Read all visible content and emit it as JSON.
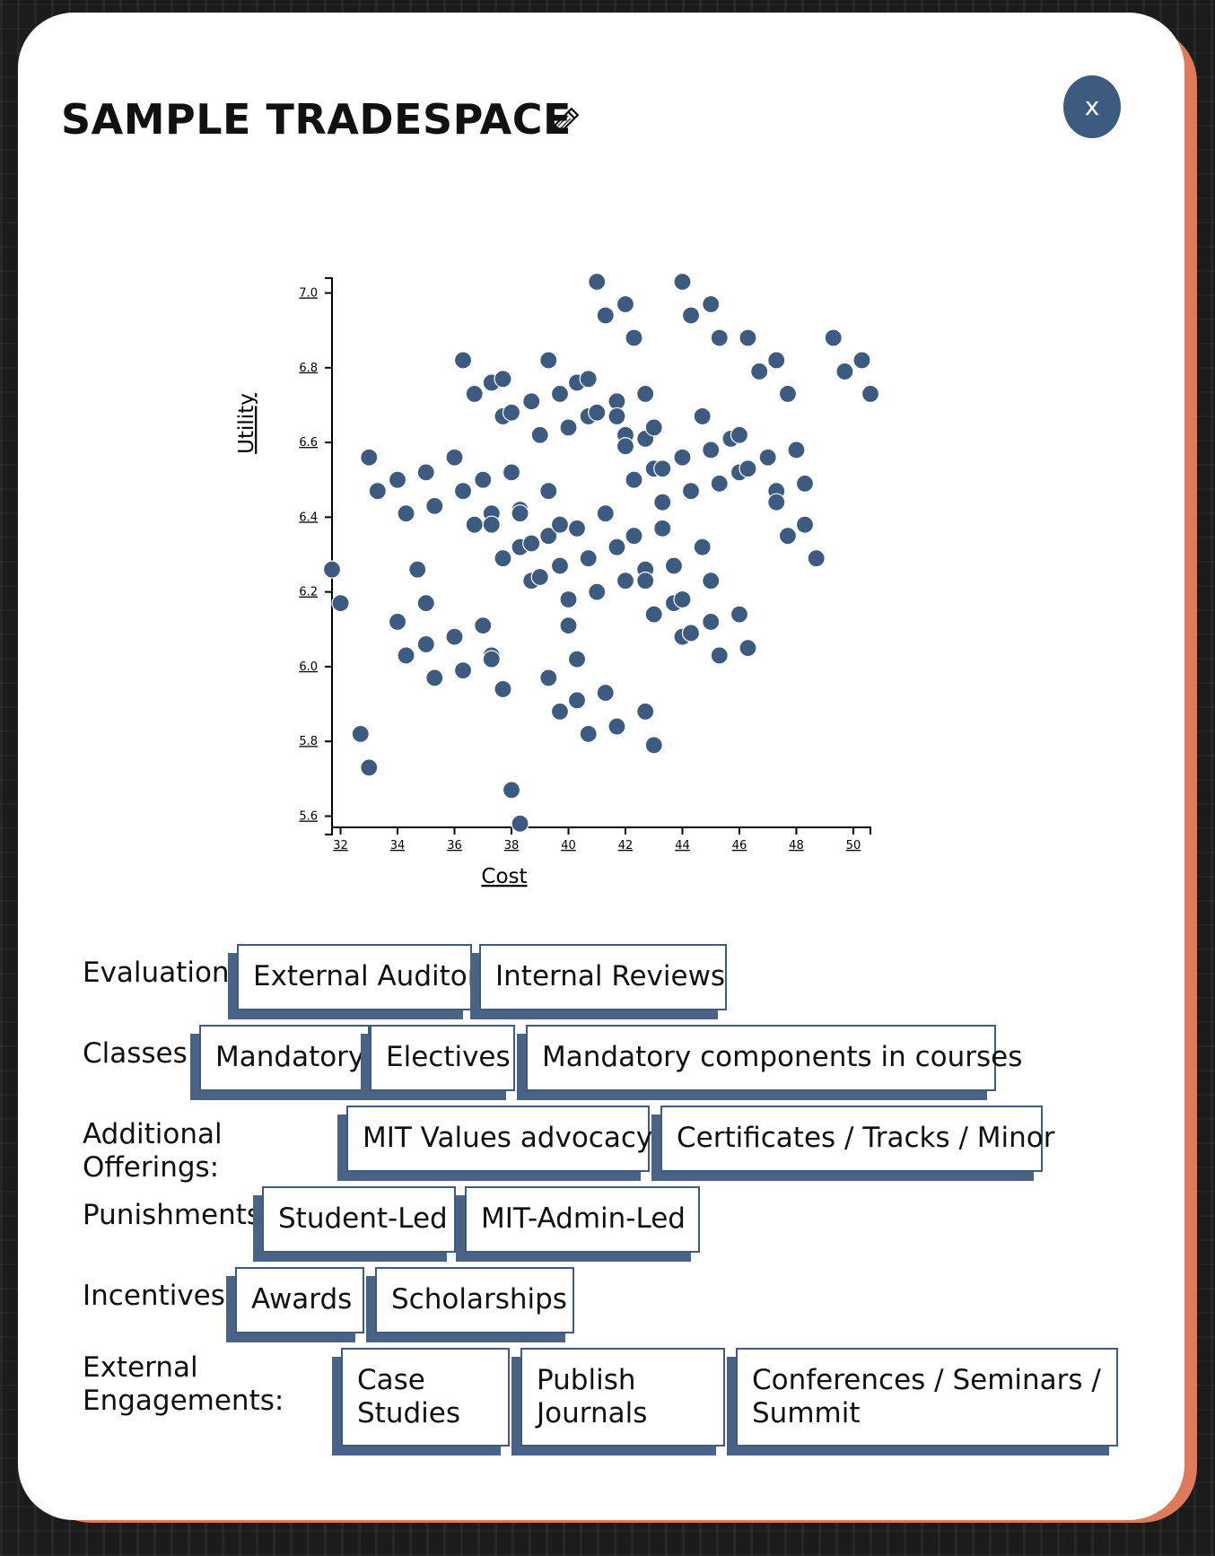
{
  "modal": {
    "title": "SAMPLE TRADESPACE",
    "close_label": "x"
  },
  "colors": {
    "accent": "#3d5a80",
    "button_shadow": "#4a6284",
    "modal_shadow": "#e07a5c",
    "point": "#3d5a80"
  },
  "icons": {
    "edit": "pencil-icon",
    "close": "close-icon"
  },
  "chart_data": {
    "type": "scatter",
    "xlabel": "Cost",
    "ylabel": "Utility",
    "xlim": [
      31.7,
      50.6
    ],
    "ylim": [
      5.57,
      7.03
    ],
    "xticks": [
      "32",
      "34",
      "36",
      "38",
      "40",
      "42",
      "44",
      "46",
      "48",
      "50"
    ],
    "yticks": [
      "5.6",
      "5.8",
      "6.0",
      "6.2",
      "6.4",
      "6.6",
      "6.8",
      "7.0"
    ],
    "grid": false,
    "points": [
      [
        31.7,
        6.26
      ],
      [
        32.0,
        6.17
      ],
      [
        32.7,
        5.82
      ],
      [
        33.0,
        5.73
      ],
      [
        33.0,
        6.56
      ],
      [
        33.3,
        6.47
      ],
      [
        34.0,
        6.5
      ],
      [
        34.0,
        6.12
      ],
      [
        34.3,
        6.41
      ],
      [
        34.3,
        6.03
      ],
      [
        34.7,
        6.26
      ],
      [
        35.0,
        6.52
      ],
      [
        35.0,
        6.17
      ],
      [
        35.0,
        6.06
      ],
      [
        35.3,
        6.43
      ],
      [
        35.3,
        5.97
      ],
      [
        36.0,
        6.56
      ],
      [
        36.0,
        6.08
      ],
      [
        36.3,
        6.82
      ],
      [
        36.3,
        6.47
      ],
      [
        36.3,
        5.99
      ],
      [
        36.7,
        6.73
      ],
      [
        36.7,
        6.38
      ],
      [
        37.0,
        6.5
      ],
      [
        37.0,
        6.11
      ],
      [
        37.3,
        6.76
      ],
      [
        37.3,
        6.41
      ],
      [
        37.3,
        6.38
      ],
      [
        37.3,
        6.03
      ],
      [
        37.3,
        6.02
      ],
      [
        37.7,
        6.77
      ],
      [
        37.7,
        6.67
      ],
      [
        37.7,
        6.29
      ],
      [
        37.7,
        5.94
      ],
      [
        38.0,
        6.68
      ],
      [
        38.0,
        6.52
      ],
      [
        38.0,
        5.67
      ],
      [
        38.3,
        6.42
      ],
      [
        38.3,
        6.41
      ],
      [
        38.3,
        6.32
      ],
      [
        38.3,
        5.58
      ],
      [
        38.7,
        6.71
      ],
      [
        38.7,
        6.33
      ],
      [
        38.7,
        6.23
      ],
      [
        39.0,
        6.62
      ],
      [
        39.0,
        6.24
      ],
      [
        39.3,
        6.82
      ],
      [
        39.3,
        6.47
      ],
      [
        39.3,
        6.35
      ],
      [
        39.3,
        5.97
      ],
      [
        39.7,
        6.73
      ],
      [
        39.7,
        6.38
      ],
      [
        39.7,
        6.27
      ],
      [
        39.7,
        5.88
      ],
      [
        40.0,
        6.64
      ],
      [
        40.0,
        6.18
      ],
      [
        40.0,
        6.11
      ],
      [
        40.3,
        6.76
      ],
      [
        40.3,
        6.37
      ],
      [
        40.3,
        6.02
      ],
      [
        40.3,
        5.91
      ],
      [
        40.7,
        6.77
      ],
      [
        40.7,
        6.67
      ],
      [
        40.7,
        6.29
      ],
      [
        40.7,
        5.82
      ],
      [
        41.0,
        7.03
      ],
      [
        41.0,
        6.68
      ],
      [
        41.0,
        6.2
      ],
      [
        41.3,
        6.94
      ],
      [
        41.3,
        6.41
      ],
      [
        41.3,
        5.93
      ],
      [
        41.7,
        6.71
      ],
      [
        41.7,
        6.67
      ],
      [
        41.7,
        6.32
      ],
      [
        41.7,
        5.84
      ],
      [
        42.0,
        6.97
      ],
      [
        42.0,
        6.62
      ],
      [
        42.0,
        6.59
      ],
      [
        42.0,
        6.23
      ],
      [
        42.3,
        6.88
      ],
      [
        42.3,
        6.5
      ],
      [
        42.3,
        6.35
      ],
      [
        42.7,
        6.73
      ],
      [
        42.7,
        6.61
      ],
      [
        42.7,
        6.26
      ],
      [
        42.7,
        6.23
      ],
      [
        42.7,
        5.88
      ],
      [
        43.0,
        6.64
      ],
      [
        43.0,
        6.53
      ],
      [
        43.0,
        6.14
      ],
      [
        43.0,
        5.79
      ],
      [
        43.3,
        6.53
      ],
      [
        43.3,
        6.44
      ],
      [
        43.3,
        6.37
      ],
      [
        43.7,
        6.27
      ],
      [
        43.7,
        6.17
      ],
      [
        44.0,
        7.03
      ],
      [
        44.0,
        6.56
      ],
      [
        44.0,
        6.18
      ],
      [
        44.0,
        6.08
      ],
      [
        44.3,
        6.94
      ],
      [
        44.3,
        6.47
      ],
      [
        44.3,
        6.09
      ],
      [
        44.7,
        6.67
      ],
      [
        44.7,
        6.32
      ],
      [
        45.0,
        6.97
      ],
      [
        45.0,
        6.58
      ],
      [
        45.0,
        6.23
      ],
      [
        45.0,
        6.12
      ],
      [
        45.3,
        6.88
      ],
      [
        45.3,
        6.49
      ],
      [
        45.3,
        6.03
      ],
      [
        45.7,
        6.61
      ],
      [
        46.0,
        6.62
      ],
      [
        46.0,
        6.52
      ],
      [
        46.0,
        6.14
      ],
      [
        46.3,
        6.88
      ],
      [
        46.3,
        6.53
      ],
      [
        46.3,
        6.05
      ],
      [
        46.7,
        6.79
      ],
      [
        47.0,
        6.56
      ],
      [
        47.3,
        6.82
      ],
      [
        47.3,
        6.47
      ],
      [
        47.3,
        6.44
      ],
      [
        47.7,
        6.73
      ],
      [
        47.7,
        6.35
      ],
      [
        48.0,
        6.58
      ],
      [
        48.3,
        6.49
      ],
      [
        48.3,
        6.38
      ],
      [
        48.7,
        6.29
      ],
      [
        49.3,
        6.88
      ],
      [
        49.7,
        6.79
      ],
      [
        50.3,
        6.82
      ],
      [
        50.6,
        6.73
      ]
    ]
  },
  "options": [
    {
      "label": "Evaluation:",
      "buttons": [
        "External Auditor",
        "Internal Reviews"
      ]
    },
    {
      "label": "Classes:",
      "buttons": [
        "Mandatory",
        "Electives",
        "Mandatory components in courses"
      ]
    },
    {
      "label": "Additional Offerings:",
      "buttons": [
        "MIT Values advocacy",
        "Certificates / Tracks / Minor"
      ]
    },
    {
      "label": "Punishments:",
      "buttons": [
        "Student-Led",
        "MIT-Admin-Led"
      ]
    },
    {
      "label": "Incentives:",
      "buttons": [
        "Awards",
        "Scholarships"
      ]
    },
    {
      "label": "External Engagements:",
      "buttons": [
        "Case Studies",
        "Publish Journals",
        "Conferences / Seminars / Summit"
      ]
    }
  ]
}
